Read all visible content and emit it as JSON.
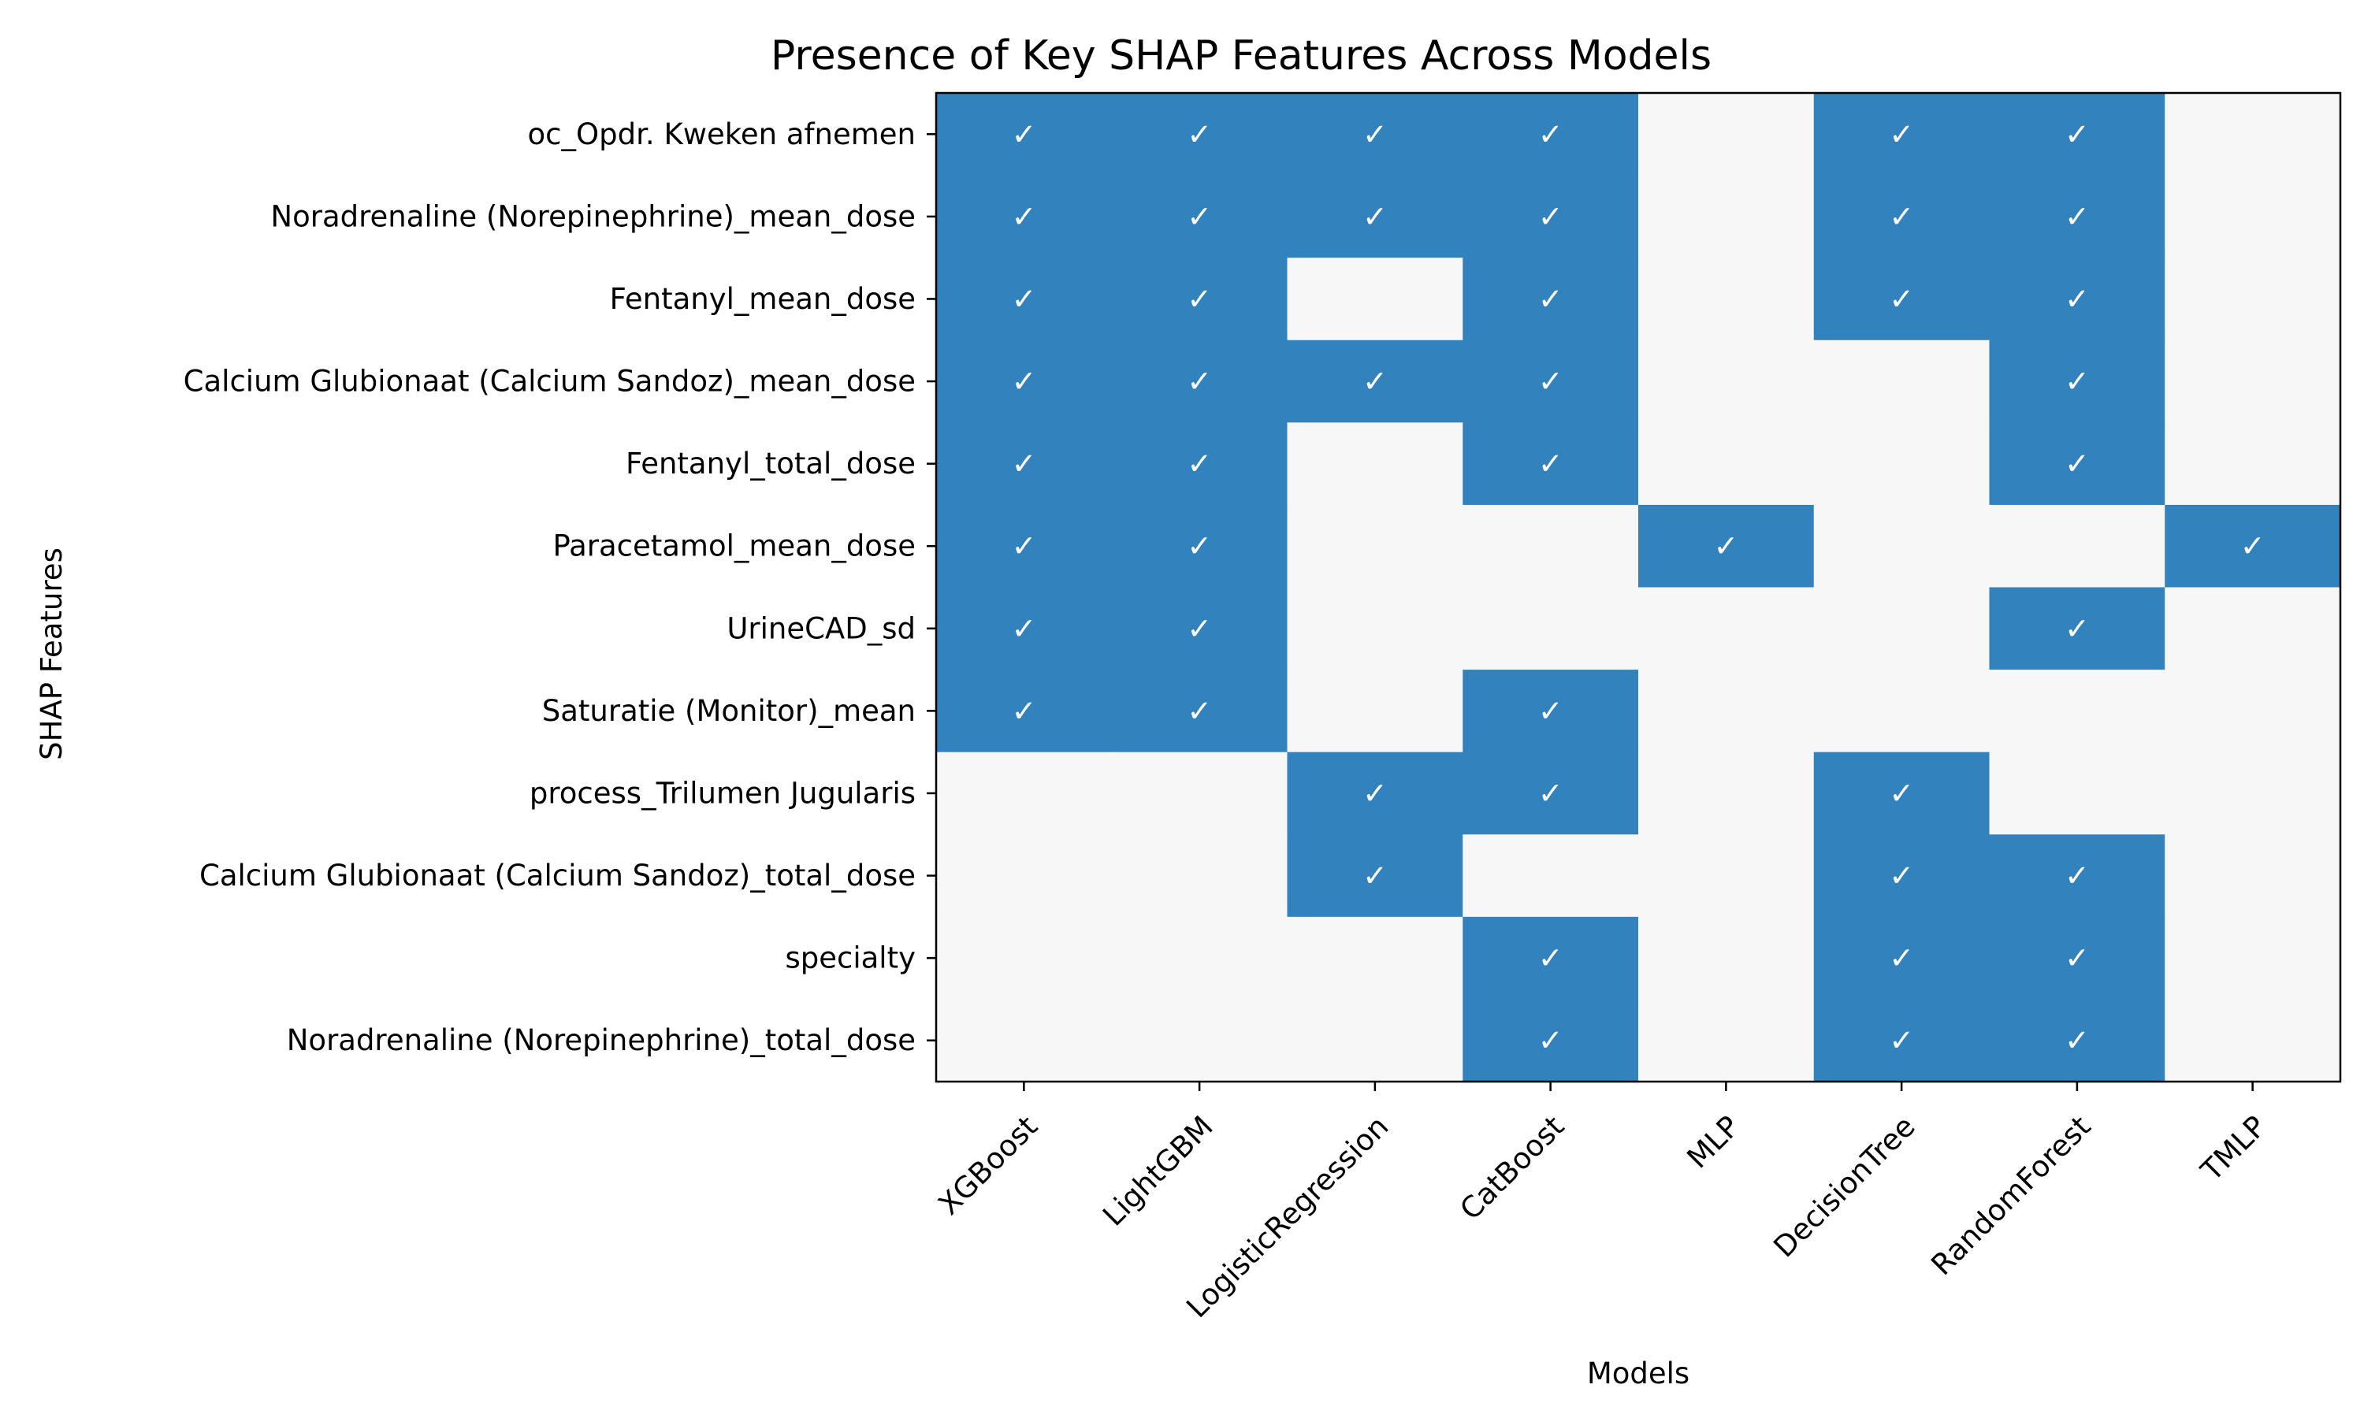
{
  "chart_data": {
    "type": "heatmap",
    "title": "Presence of Key SHAP Features Across Models",
    "xlabel": "Models",
    "ylabel": "SHAP Features",
    "check_symbol": "✓",
    "colors": {
      "present": "#3282bd",
      "absent": "#f7f7f7"
    },
    "models": [
      "XGBoost",
      "LightGBM",
      "LogisticRegression",
      "CatBoost",
      "MLP",
      "DecisionTree",
      "RandomForest",
      "TMLP"
    ],
    "features": [
      "oc_Opdr. Kweken afnemen",
      "Noradrenaline (Norepinephrine)_mean_dose",
      "Fentanyl_mean_dose",
      "Calcium Glubionaat (Calcium Sandoz)_mean_dose",
      "Fentanyl_total_dose",
      "Paracetamol_mean_dose",
      "UrineCAD_sd",
      "Saturatie (Monitor)_mean",
      "process_Trilumen Jugularis",
      "Calcium Glubionaat (Calcium Sandoz)_total_dose",
      "specialty",
      "Noradrenaline (Norepinephrine)_total_dose"
    ],
    "matrix": [
      [
        1,
        1,
        1,
        1,
        0,
        1,
        1,
        0
      ],
      [
        1,
        1,
        1,
        1,
        0,
        1,
        1,
        0
      ],
      [
        1,
        1,
        0,
        1,
        0,
        1,
        1,
        0
      ],
      [
        1,
        1,
        1,
        1,
        0,
        0,
        1,
        0
      ],
      [
        1,
        1,
        0,
        1,
        0,
        0,
        1,
        0
      ],
      [
        1,
        1,
        0,
        0,
        1,
        0,
        0,
        1
      ],
      [
        1,
        1,
        0,
        0,
        0,
        0,
        1,
        0
      ],
      [
        1,
        1,
        0,
        1,
        0,
        0,
        0,
        0
      ],
      [
        0,
        0,
        1,
        1,
        0,
        1,
        0,
        0
      ],
      [
        0,
        0,
        1,
        0,
        0,
        1,
        1,
        0
      ],
      [
        0,
        0,
        0,
        1,
        0,
        1,
        1,
        0
      ],
      [
        0,
        0,
        0,
        1,
        0,
        1,
        1,
        0
      ]
    ],
    "grid": false,
    "legend": "none"
  }
}
